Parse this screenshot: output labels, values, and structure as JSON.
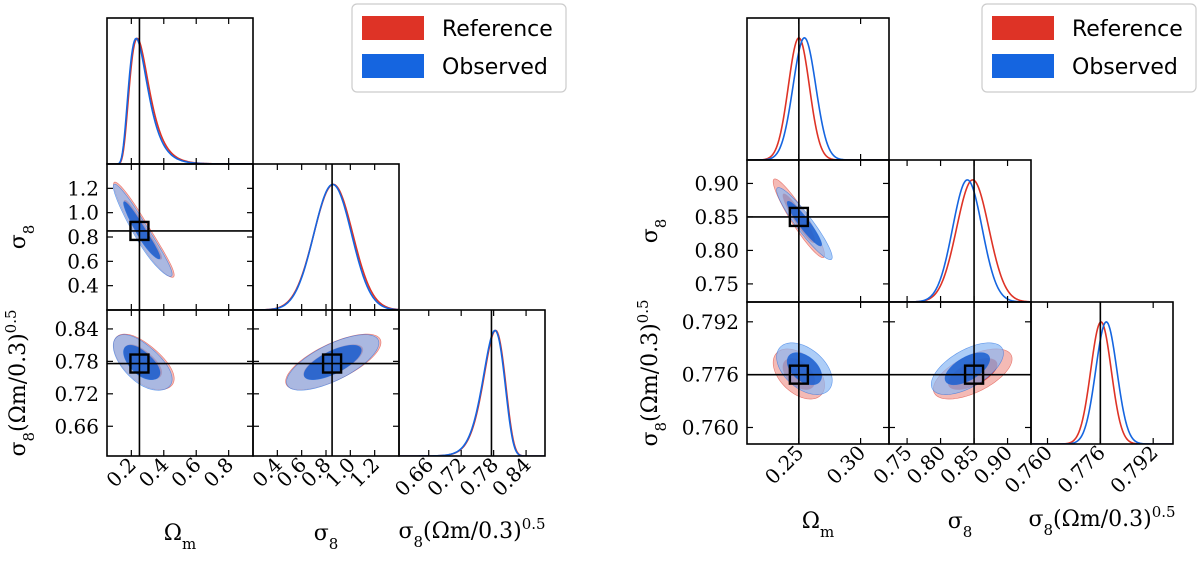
{
  "colors": {
    "reference": "#de3326",
    "observed": "#1565e0",
    "axes": "#000000"
  },
  "legend": [
    "Reference",
    "Observed"
  ],
  "chart_data": [
    {
      "type": "corner",
      "panel": "left",
      "params": [
        "Ωm",
        "σ8",
        "σ8(Ωm/0.3)^0.5"
      ],
      "param_labels": [
        {
          "main": "Ω",
          "sub": "m",
          "rest": ""
        },
        {
          "main": "σ",
          "sub": "8",
          "rest": ""
        },
        {
          "main": "σ",
          "sub": "8",
          "rest": "(Ωm/0.3)",
          "sup": "0.5"
        }
      ],
      "ranges": [
        [
          0.05,
          0.95
        ],
        [
          0.2,
          1.4
        ],
        [
          0.605,
          0.875
        ]
      ],
      "ticks": [
        {
          "values": [
            0.2,
            0.4,
            0.6,
            0.8
          ],
          "labels": [
            "0.2",
            "0.4",
            "0.6",
            "0.8"
          ]
        },
        {
          "values": [
            0.4,
            0.6,
            0.8,
            1.0,
            1.2
          ],
          "labels": [
            "0.4",
            "0.6",
            "0.8",
            "1.0",
            "1.2"
          ]
        },
        {
          "values": [
            0.66,
            0.72,
            0.78,
            0.84
          ],
          "labels": [
            "0.66",
            "0.72",
            "0.78",
            "0.84"
          ]
        }
      ],
      "truth": [
        0.25,
        0.85,
        0.776
      ],
      "series": [
        {
          "name": "Reference",
          "means": [
            0.262,
            0.86,
            0.779
          ],
          "sds": [
            0.07,
            0.16,
            0.021
          ],
          "skews": [
            4.0,
            0,
            -2.2
          ],
          "corrs": [
            [
              1,
              -0.95,
              -0.6
            ],
            [
              -0.95,
              1,
              0.7
            ],
            [
              -0.6,
              0.7,
              1
            ]
          ]
        },
        {
          "name": "Observed",
          "means": [
            0.255,
            0.855,
            0.778
          ],
          "sds": [
            0.068,
            0.155,
            0.021
          ],
          "skews": [
            4.0,
            0,
            -2.2
          ],
          "corrs": [
            [
              1,
              -0.95,
              -0.6
            ],
            [
              -0.95,
              1,
              0.7
            ],
            [
              -0.6,
              0.7,
              1
            ]
          ]
        }
      ]
    },
    {
      "type": "corner",
      "panel": "right",
      "params": [
        "Ωm",
        "σ8",
        "σ8(Ωm/0.3)^0.5"
      ],
      "param_labels": [
        {
          "main": "Ω",
          "sub": "m",
          "rest": ""
        },
        {
          "main": "σ",
          "sub": "8",
          "rest": ""
        },
        {
          "main": "σ",
          "sub": "8",
          "rest": "(Ωm/0.3)",
          "sup": "0.5"
        }
      ],
      "ranges": [
        [
          0.208,
          0.323
        ],
        [
          0.723,
          0.935
        ],
        [
          0.755,
          0.798
        ]
      ],
      "ticks": [
        {
          "values": [
            0.25,
            0.3
          ],
          "labels": [
            "0.25",
            "0.30"
          ]
        },
        {
          "values": [
            0.75,
            0.8,
            0.85,
            0.9
          ],
          "labels": [
            "0.75",
            "0.80",
            "0.85",
            "0.90"
          ]
        },
        {
          "values": [
            0.76,
            0.776,
            0.792
          ],
          "labels": [
            "0.760",
            "0.776",
            "0.792"
          ]
        }
      ],
      "truth": [
        0.25,
        0.85,
        0.776
      ],
      "series": [
        {
          "name": "Reference",
          "means": [
            0.25,
            0.848,
            0.7762
          ],
          "sds": [
            0.0085,
            0.024,
            0.0031
          ],
          "skews": [
            0,
            0,
            0
          ],
          "corrs": [
            [
              1,
              -0.93,
              -0.45
            ],
            [
              -0.93,
              1,
              0.6
            ],
            [
              -0.45,
              0.6,
              1
            ]
          ]
        },
        {
          "name": "Observed",
          "means": [
            0.2545,
            0.84,
            0.7778
          ],
          "sds": [
            0.0092,
            0.022,
            0.0032
          ],
          "skews": [
            0,
            0,
            0
          ],
          "corrs": [
            [
              1,
              -0.93,
              -0.45
            ],
            [
              -0.93,
              1,
              0.6
            ],
            [
              -0.45,
              0.6,
              1
            ]
          ]
        }
      ]
    }
  ]
}
